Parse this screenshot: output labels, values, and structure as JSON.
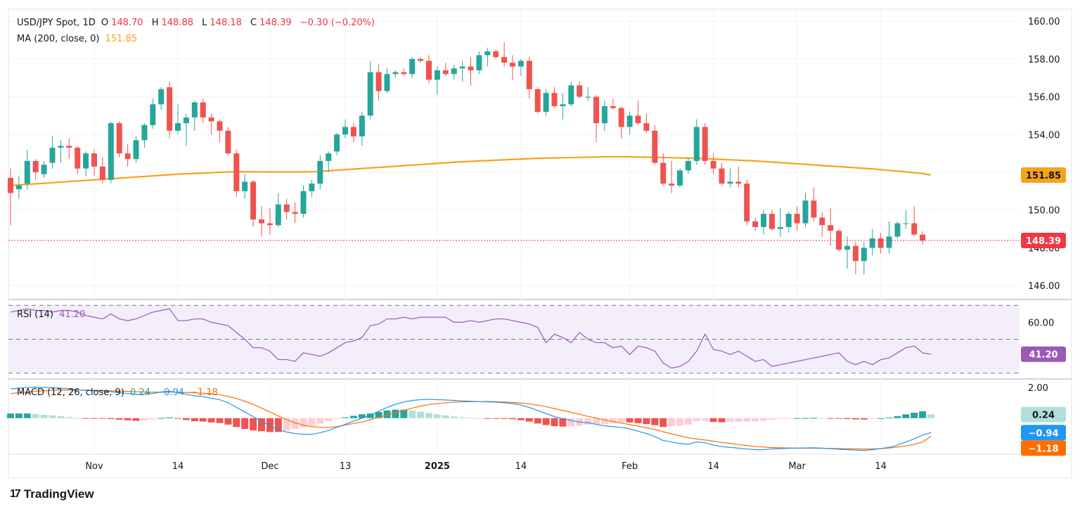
{
  "header": {
    "symbol": "USD/JPY Spot, 1D",
    "open_label": "O",
    "open": "148.70",
    "high_label": "H",
    "high": "148.88",
    "low_label": "L",
    "low": "148.18",
    "close_label": "C",
    "close": "148.39",
    "change": "−0.30 (−0.20%)",
    "ma_label": "MA (200, close, 0)",
    "ma_value": "151.85",
    "rsi_label": "RSI (14)",
    "rsi_value": "41.20",
    "macd_label": "MACD (12, 26, close, 9)",
    "macd_hist": "0.24",
    "macd_line": "−0.94",
    "macd_signal": "−1.18"
  },
  "footer": {
    "brand": "TradingView",
    "logo_glyph": "17"
  },
  "colors": {
    "up": "#26a69a",
    "down": "#ef5350",
    "ma": "#f7a21b",
    "rsi": "#9b59b6",
    "macd": "#2196f3",
    "signal": "#ff6d00",
    "hist_up": "#26a69a",
    "hist_up_light": "#b2dfdb",
    "hist_down": "#ef5350",
    "hist_down_light": "#ffcdd2"
  },
  "chart_data": {
    "type": "candlestick",
    "title": "USD/JPY Spot, 1D",
    "price_axis": {
      "ticks": [
        "160.00",
        "158.00",
        "156.00",
        "154.00",
        "152.00",
        "150.00",
        "148.00",
        "146.00"
      ],
      "range": [
        145.3,
        160.6
      ]
    },
    "x_ticks": [
      {
        "label": "Nov",
        "bold": false,
        "x": 10
      },
      {
        "label": "14",
        "bold": false,
        "x": 20
      },
      {
        "label": "Dec",
        "bold": false,
        "x": 31
      },
      {
        "label": "13",
        "bold": false,
        "x": 40
      },
      {
        "label": "2025",
        "bold": true,
        "x": 51
      },
      {
        "label": "14",
        "bold": false,
        "x": 61
      },
      {
        "label": "Feb",
        "bold": false,
        "x": 74
      },
      {
        "label": "14",
        "bold": false,
        "x": 84
      },
      {
        "label": "Mar",
        "bold": false,
        "x": 94
      },
      {
        "label": "14",
        "bold": false,
        "x": 104
      }
    ],
    "last_price": 148.39,
    "ma_last": 151.85,
    "candles": [
      [
        151.7,
        152.2,
        149.2,
        150.9
      ],
      [
        151.1,
        151.8,
        150.6,
        151.3
      ],
      [
        151.4,
        153.2,
        151.1,
        152.6
      ],
      [
        152.6,
        152.7,
        151.6,
        152.0
      ],
      [
        151.9,
        152.6,
        151.7,
        152.4
      ],
      [
        152.5,
        153.9,
        152.2,
        153.3
      ],
      [
        153.3,
        153.7,
        152.5,
        153.4
      ],
      [
        153.4,
        153.8,
        152.7,
        153.3
      ],
      [
        153.3,
        153.4,
        151.9,
        152.2
      ],
      [
        152.2,
        153.1,
        151.8,
        153.0
      ],
      [
        153.0,
        153.2,
        151.8,
        152.3
      ],
      [
        152.3,
        152.8,
        151.4,
        151.6
      ],
      [
        151.6,
        154.7,
        151.4,
        154.6
      ],
      [
        154.6,
        154.7,
        152.8,
        153.0
      ],
      [
        153.0,
        153.5,
        152.3,
        152.7
      ],
      [
        152.7,
        153.9,
        152.5,
        153.7
      ],
      [
        153.7,
        154.6,
        153.3,
        154.5
      ],
      [
        154.5,
        155.9,
        154.3,
        155.6
      ],
      [
        155.6,
        156.5,
        155.3,
        156.4
      ],
      [
        156.5,
        156.8,
        153.8,
        154.2
      ],
      [
        154.2,
        155.6,
        154.0,
        154.6
      ],
      [
        154.6,
        155.1,
        153.4,
        154.9
      ],
      [
        154.9,
        155.8,
        154.2,
        155.7
      ],
      [
        155.7,
        155.9,
        154.6,
        154.9
      ],
      [
        154.9,
        155.1,
        154.0,
        154.7
      ],
      [
        154.7,
        154.8,
        153.6,
        154.2
      ],
      [
        154.2,
        154.4,
        152.9,
        153.0
      ],
      [
        153.0,
        153.2,
        150.7,
        151.0
      ],
      [
        151.0,
        151.9,
        150.6,
        151.5
      ],
      [
        151.5,
        151.6,
        149.1,
        149.5
      ],
      [
        149.5,
        150.2,
        148.6,
        149.3
      ],
      [
        149.3,
        150.1,
        148.7,
        149.2
      ],
      [
        149.2,
        150.9,
        149.1,
        150.3
      ],
      [
        150.3,
        150.6,
        149.5,
        149.9
      ],
      [
        149.9,
        150.4,
        149.3,
        149.8
      ],
      [
        149.8,
        151.3,
        149.6,
        151.0
      ],
      [
        151.0,
        151.6,
        150.7,
        151.4
      ],
      [
        151.4,
        152.9,
        151.1,
        152.6
      ],
      [
        152.6,
        153.1,
        152.0,
        153.0
      ],
      [
        153.1,
        154.1,
        152.9,
        154.0
      ],
      [
        154.0,
        154.8,
        153.8,
        154.4
      ],
      [
        154.4,
        154.6,
        153.6,
        153.9
      ],
      [
        153.9,
        155.2,
        153.4,
        155.0
      ],
      [
        155.0,
        157.9,
        154.8,
        157.3
      ],
      [
        157.3,
        157.7,
        155.8,
        156.3
      ],
      [
        156.3,
        157.5,
        156.2,
        157.2
      ],
      [
        157.2,
        157.4,
        157.0,
        157.3
      ],
      [
        157.3,
        157.5,
        157.1,
        157.2
      ],
      [
        157.2,
        158.1,
        157.0,
        158.0
      ],
      [
        158.0,
        158.1,
        157.8,
        157.9
      ],
      [
        157.9,
        158.2,
        156.7,
        156.9
      ],
      [
        156.9,
        157.6,
        156.1,
        157.4
      ],
      [
        157.4,
        157.8,
        157.1,
        157.2
      ],
      [
        157.2,
        157.7,
        156.9,
        157.5
      ],
      [
        157.5,
        157.9,
        156.8,
        157.6
      ],
      [
        157.6,
        158.1,
        156.6,
        157.4
      ],
      [
        157.4,
        158.4,
        157.2,
        158.2
      ],
      [
        158.2,
        158.6,
        157.6,
        158.4
      ],
      [
        158.4,
        158.5,
        158.0,
        158.1
      ],
      [
        158.1,
        158.9,
        157.6,
        157.8
      ],
      [
        157.8,
        158.2,
        156.9,
        157.6
      ],
      [
        157.6,
        158.0,
        157.1,
        157.9
      ],
      [
        157.9,
        158.1,
        155.9,
        156.4
      ],
      [
        156.4,
        156.5,
        155.1,
        155.2
      ],
      [
        155.2,
        156.4,
        155.0,
        156.2
      ],
      [
        156.2,
        156.5,
        155.4,
        155.5
      ],
      [
        155.5,
        156.2,
        154.8,
        155.6
      ],
      [
        155.6,
        156.8,
        155.5,
        156.6
      ],
      [
        156.6,
        156.8,
        155.9,
        156.0
      ],
      [
        156.0,
        156.5,
        155.8,
        156.0
      ],
      [
        156.0,
        156.1,
        153.6,
        154.6
      ],
      [
        154.6,
        155.8,
        154.2,
        155.5
      ],
      [
        155.5,
        155.9,
        155.3,
        155.4
      ],
      [
        155.4,
        155.5,
        153.8,
        154.4
      ],
      [
        154.4,
        155.2,
        154.0,
        155.0
      ],
      [
        155.0,
        155.8,
        154.5,
        154.6
      ],
      [
        154.6,
        155.1,
        154.1,
        154.2
      ],
      [
        154.2,
        154.5,
        152.4,
        152.5
      ],
      [
        152.5,
        153.0,
        151.3,
        151.4
      ],
      [
        151.4,
        152.6,
        150.9,
        151.3
      ],
      [
        151.3,
        152.2,
        151.2,
        152.1
      ],
      [
        152.1,
        152.8,
        151.9,
        152.6
      ],
      [
        152.6,
        154.8,
        152.4,
        154.4
      ],
      [
        154.4,
        154.6,
        152.4,
        152.6
      ],
      [
        152.6,
        153.0,
        151.9,
        152.2
      ],
      [
        152.2,
        152.5,
        151.3,
        151.4
      ],
      [
        151.4,
        152.2,
        151.2,
        151.5
      ],
      [
        151.5,
        152.3,
        151.2,
        151.4
      ],
      [
        151.4,
        151.6,
        149.2,
        149.4
      ],
      [
        149.4,
        149.6,
        148.9,
        149.1
      ],
      [
        149.1,
        150.0,
        148.7,
        149.8
      ],
      [
        149.8,
        150.0,
        148.9,
        149.0
      ],
      [
        149.0,
        150.1,
        148.6,
        149.1
      ],
      [
        149.1,
        149.9,
        148.8,
        149.8
      ],
      [
        149.8,
        150.2,
        148.9,
        149.3
      ],
      [
        149.3,
        150.9,
        149.1,
        150.5
      ],
      [
        150.5,
        151.2,
        149.4,
        149.6
      ],
      [
        149.6,
        149.9,
        148.6,
        149.2
      ],
      [
        149.2,
        150.1,
        148.1,
        148.9
      ],
      [
        148.9,
        149.0,
        147.8,
        147.9
      ],
      [
        147.9,
        148.6,
        146.9,
        148.1
      ],
      [
        148.1,
        148.3,
        146.6,
        147.3
      ],
      [
        147.3,
        148.3,
        146.6,
        148.0
      ],
      [
        148.0,
        149.0,
        147.6,
        148.5
      ],
      [
        148.5,
        148.8,
        147.7,
        148.0
      ],
      [
        148.0,
        149.4,
        147.7,
        148.6
      ],
      [
        148.6,
        149.4,
        148.5,
        149.3
      ],
      [
        149.3,
        150.0,
        149.0,
        149.3
      ],
      [
        149.3,
        150.2,
        148.6,
        148.7
      ],
      [
        148.7,
        148.88,
        148.18,
        148.39
      ]
    ],
    "ma200": [
      151.3,
      151.33,
      151.36,
      151.39,
      151.42,
      151.45,
      151.48,
      151.51,
      151.54,
      151.57,
      151.6,
      151.63,
      151.66,
      151.69,
      151.72,
      151.75,
      151.78,
      151.81,
      151.84,
      151.87,
      151.9,
      151.92,
      151.94,
      151.96,
      151.98,
      152.0,
      152.02,
      152.03,
      152.03,
      152.03,
      152.02,
      152.02,
      152.02,
      152.02,
      152.02,
      152.02,
      152.03,
      152.05,
      152.08,
      152.11,
      152.14,
      152.17,
      152.2,
      152.23,
      152.26,
      152.29,
      152.32,
      152.35,
      152.38,
      152.41,
      152.44,
      152.47,
      152.5,
      152.53,
      152.56,
      152.58,
      152.6,
      152.62,
      152.64,
      152.66,
      152.68,
      152.7,
      152.72,
      152.74,
      152.75,
      152.76,
      152.77,
      152.78,
      152.79,
      152.8,
      152.81,
      152.82,
      152.82,
      152.82,
      152.82,
      152.81,
      152.8,
      152.79,
      152.78,
      152.77,
      152.76,
      152.75,
      152.74,
      152.72,
      152.7,
      152.68,
      152.66,
      152.64,
      152.62,
      152.6,
      152.57,
      152.54,
      152.51,
      152.48,
      152.45,
      152.42,
      152.39,
      152.36,
      152.33,
      152.3,
      152.27,
      152.24,
      152.21,
      152.18,
      152.14,
      152.1,
      152.06,
      152.02,
      151.98,
      151.94,
      151.85
    ],
    "rsi": {
      "ticks": [
        "60.00"
      ],
      "levels": [
        70,
        50,
        30
      ],
      "range": [
        27,
        73
      ],
      "values": [
        66,
        67,
        68,
        67,
        67,
        66,
        67,
        67,
        66,
        64,
        63,
        62,
        65,
        62,
        61,
        62,
        64,
        66,
        67,
        68,
        61,
        61,
        62,
        62,
        60,
        59,
        58,
        54,
        50,
        45,
        45,
        43,
        38,
        38,
        37,
        42,
        41,
        40,
        42,
        45,
        48,
        49,
        51,
        58,
        59,
        62,
        62,
        63,
        62,
        63,
        63,
        63,
        63,
        60,
        60,
        61,
        60,
        61,
        62,
        62,
        61,
        60,
        59,
        57,
        48,
        53,
        51,
        48,
        54,
        50,
        48,
        48,
        45,
        46,
        41,
        46,
        45,
        43,
        36,
        33,
        34,
        37,
        43,
        53,
        44,
        43,
        41,
        43,
        40,
        37,
        38,
        34,
        35,
        36,
        37,
        38,
        39,
        40,
        41,
        42,
        37,
        35,
        37,
        35,
        38,
        39,
        42,
        45,
        46,
        42,
        41.2
      ]
    },
    "macd": {
      "ticks": [
        "2.00"
      ],
      "range": [
        -2.3,
        2.5
      ],
      "line": [
        1.9,
        1.95,
        2.0,
        2.02,
        2.0,
        1.98,
        1.95,
        1.9,
        1.85,
        1.8,
        1.78,
        1.76,
        1.72,
        1.66,
        1.6,
        1.55,
        1.55,
        1.6,
        1.7,
        1.75,
        1.65,
        1.55,
        1.45,
        1.4,
        1.3,
        1.2,
        1.0,
        0.7,
        0.4,
        0.1,
        -0.2,
        -0.5,
        -0.75,
        -0.9,
        -1.0,
        -1.05,
        -1.05,
        -0.95,
        -0.8,
        -0.6,
        -0.4,
        -0.2,
        0.0,
        0.2,
        0.45,
        0.7,
        0.9,
        1.05,
        1.15,
        1.2,
        1.22,
        1.2,
        1.18,
        1.15,
        1.12,
        1.1,
        1.08,
        1.06,
        1.04,
        1.0,
        0.95,
        0.85,
        0.7,
        0.5,
        0.3,
        0.1,
        -0.05,
        -0.15,
        -0.25,
        -0.3,
        -0.4,
        -0.5,
        -0.55,
        -0.6,
        -0.7,
        -0.85,
        -1.0,
        -1.2,
        -1.45,
        -1.55,
        -1.65,
        -1.7,
        -1.55,
        -1.6,
        -1.75,
        -1.85,
        -1.9,
        -1.95,
        -2.0,
        -2.05,
        -2.05,
        -2.0,
        -1.98,
        -1.96,
        -1.95,
        -1.94,
        -1.93,
        -1.95,
        -1.98,
        -2.02,
        -2.05,
        -2.08,
        -2.1,
        -2.05,
        -1.98,
        -1.9,
        -1.75,
        -1.55,
        -1.35,
        -1.1,
        -0.94
      ],
      "signal": [
        1.6,
        1.65,
        1.7,
        1.75,
        1.78,
        1.8,
        1.82,
        1.83,
        1.83,
        1.82,
        1.81,
        1.8,
        1.78,
        1.76,
        1.74,
        1.72,
        1.7,
        1.69,
        1.69,
        1.7,
        1.69,
        1.67,
        1.65,
        1.62,
        1.58,
        1.52,
        1.42,
        1.28,
        1.1,
        0.9,
        0.65,
        0.4,
        0.15,
        -0.1,
        -0.3,
        -0.45,
        -0.55,
        -0.6,
        -0.6,
        -0.55,
        -0.45,
        -0.35,
        -0.25,
        -0.1,
        0.05,
        0.2,
        0.35,
        0.5,
        0.65,
        0.78,
        0.88,
        0.95,
        1.0,
        1.04,
        1.06,
        1.07,
        1.08,
        1.08,
        1.07,
        1.05,
        1.02,
        0.98,
        0.92,
        0.85,
        0.75,
        0.62,
        0.5,
        0.38,
        0.25,
        0.12,
        0.0,
        -0.12,
        -0.22,
        -0.32,
        -0.42,
        -0.52,
        -0.62,
        -0.74,
        -0.88,
        -1.02,
        -1.15,
        -1.28,
        -1.35,
        -1.42,
        -1.5,
        -1.58,
        -1.65,
        -1.72,
        -1.78,
        -1.84,
        -1.88,
        -1.91,
        -1.93,
        -1.94,
        -1.95,
        -1.95,
        -1.95,
        -1.96,
        -1.97,
        -1.98,
        -1.99,
        -2.0,
        -2.01,
        -2.0,
        -1.98,
        -1.94,
        -1.88,
        -1.8,
        -1.7,
        -1.55,
        -1.18
      ]
    }
  }
}
